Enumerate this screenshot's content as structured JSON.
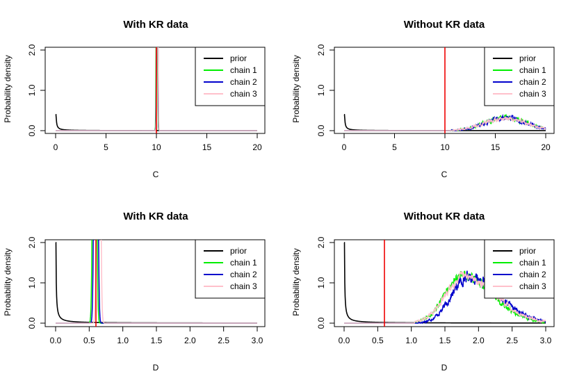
{
  "legend_entries": [
    {
      "label": "prior",
      "color": "#000000"
    },
    {
      "label": "chain 1",
      "color": "#00ee00"
    },
    {
      "label": "chain 2",
      "color": "#0000cc"
    },
    {
      "label": "chain 3",
      "color": "#ffc0cb"
    }
  ],
  "chart_data": [
    {
      "type": "line",
      "title": "With KR data",
      "xlabel": "C",
      "ylabel": "Probability density",
      "xlim": [
        0,
        20
      ],
      "ylim": [
        0,
        2.0
      ],
      "xticks": [
        0,
        5,
        10,
        15,
        20
      ],
      "yticks": [
        "0.0",
        "1.0",
        "2.0"
      ],
      "xticklabels": [
        "0",
        "5",
        "10",
        "15",
        "20"
      ],
      "true_value": 10,
      "legend_position": "top-right",
      "series": [
        {
          "name": "prior",
          "color": "#000000",
          "kind": "prior",
          "scale": 0.02,
          "xmin": 0.05
        },
        {
          "name": "chain 1",
          "color": "#00ee00",
          "kind": "peak",
          "center": 10.05,
          "width": 0.05,
          "height": 9
        },
        {
          "name": "chain 2",
          "color": "#0000cc",
          "kind": "peak",
          "center": 10.08,
          "width": 0.05,
          "height": 9
        },
        {
          "name": "chain 3",
          "color": "#ffc0cb",
          "kind": "peak",
          "center": 10.1,
          "width": 0.05,
          "height": 9
        }
      ]
    },
    {
      "type": "line",
      "title": "Without KR data",
      "xlabel": "C",
      "ylabel": "Probability density",
      "xlim": [
        0,
        20
      ],
      "ylim": [
        0,
        2.0
      ],
      "xticks": [
        0,
        5,
        10,
        15,
        20
      ],
      "yticks": [
        "0.0",
        "1.0",
        "2.0"
      ],
      "xticklabels": [
        "0",
        "5",
        "10",
        "15",
        "20"
      ],
      "true_value": 10,
      "legend_position": "top-right",
      "series": [
        {
          "name": "prior",
          "color": "#000000",
          "kind": "prior",
          "scale": 0.02,
          "xmin": 0.05
        },
        {
          "name": "chain 1",
          "color": "#00ee00",
          "kind": "hump",
          "center": 16.0,
          "width": 2.0,
          "height": 0.33,
          "start": 10.5,
          "noise": 0.1,
          "seed": 11
        },
        {
          "name": "chain 2",
          "color": "#0000cc",
          "kind": "hump",
          "center": 16.1,
          "width": 2.0,
          "height": 0.32,
          "start": 10.5,
          "noise": 0.1,
          "seed": 23
        },
        {
          "name": "chain 3",
          "color": "#ffc0cb",
          "kind": "hump",
          "center": 16.0,
          "width": 2.1,
          "height": 0.3,
          "start": 10.5,
          "noise": 0.08,
          "seed": 37
        }
      ]
    },
    {
      "type": "line",
      "title": "With KR data",
      "xlabel": "D",
      "ylabel": "Probability density",
      "xlim": [
        0,
        3
      ],
      "ylim": [
        0,
        2.0
      ],
      "xticks": [
        0,
        0.5,
        1,
        1.5,
        2,
        2.5,
        3
      ],
      "yticks": [
        "0.0",
        "1.0",
        "2.0"
      ],
      "xticklabels": [
        "0.0",
        "0.5",
        "1.0",
        "1.5",
        "2.0",
        "2.5",
        "3.0"
      ],
      "true_value": 0.6,
      "legend_position": "top-right",
      "series": [
        {
          "name": "prior",
          "color": "#000000",
          "kind": "prior",
          "scale": 0.01,
          "xmin": 0.005
        },
        {
          "name": "chain 1",
          "color": "#00ee00",
          "kind": "peak",
          "center": 0.58,
          "width": 0.02,
          "height": 15
        },
        {
          "name": "chain 2",
          "color": "#0000cc",
          "kind": "peak",
          "center": 0.6,
          "width": 0.02,
          "height": 15
        },
        {
          "name": "chain 3",
          "color": "#ffc0cb",
          "kind": "peak",
          "center": 0.64,
          "width": 0.02,
          "height": 15
        }
      ]
    },
    {
      "type": "line",
      "title": "Without KR data",
      "xlabel": "D",
      "ylabel": "Probability density",
      "xlim": [
        0,
        3
      ],
      "ylim": [
        0,
        2.0
      ],
      "xticks": [
        0,
        0.5,
        1,
        1.5,
        2,
        2.5,
        3
      ],
      "yticks": [
        "0.0",
        "1.0",
        "2.0"
      ],
      "xticklabels": [
        "0.0",
        "0.5",
        "1.0",
        "1.5",
        "2.0",
        "2.5",
        "3.0"
      ],
      "true_value": 0.6,
      "legend_position": "top-right",
      "series": [
        {
          "name": "prior",
          "color": "#000000",
          "kind": "prior",
          "scale": 0.01,
          "xmin": 0.005
        },
        {
          "name": "chain 1",
          "color": "#00ee00",
          "kind": "skew",
          "peak": 1.75,
          "left_width": 0.25,
          "right_width": 0.45,
          "height": 1.2,
          "start": 1.05,
          "noise": 0.2,
          "seed": 5
        },
        {
          "name": "chain 2",
          "color": "#0000cc",
          "kind": "skew",
          "peak": 1.85,
          "left_width": 0.25,
          "right_width": 0.45,
          "height": 1.15,
          "start": 1.1,
          "noise": 0.22,
          "seed": 17
        },
        {
          "name": "chain 3",
          "color": "#ffc0cb",
          "kind": "skew",
          "peak": 1.78,
          "left_width": 0.27,
          "right_width": 0.47,
          "height": 1.15,
          "start": 1.05,
          "noise": 0.18,
          "seed": 29
        }
      ]
    }
  ]
}
